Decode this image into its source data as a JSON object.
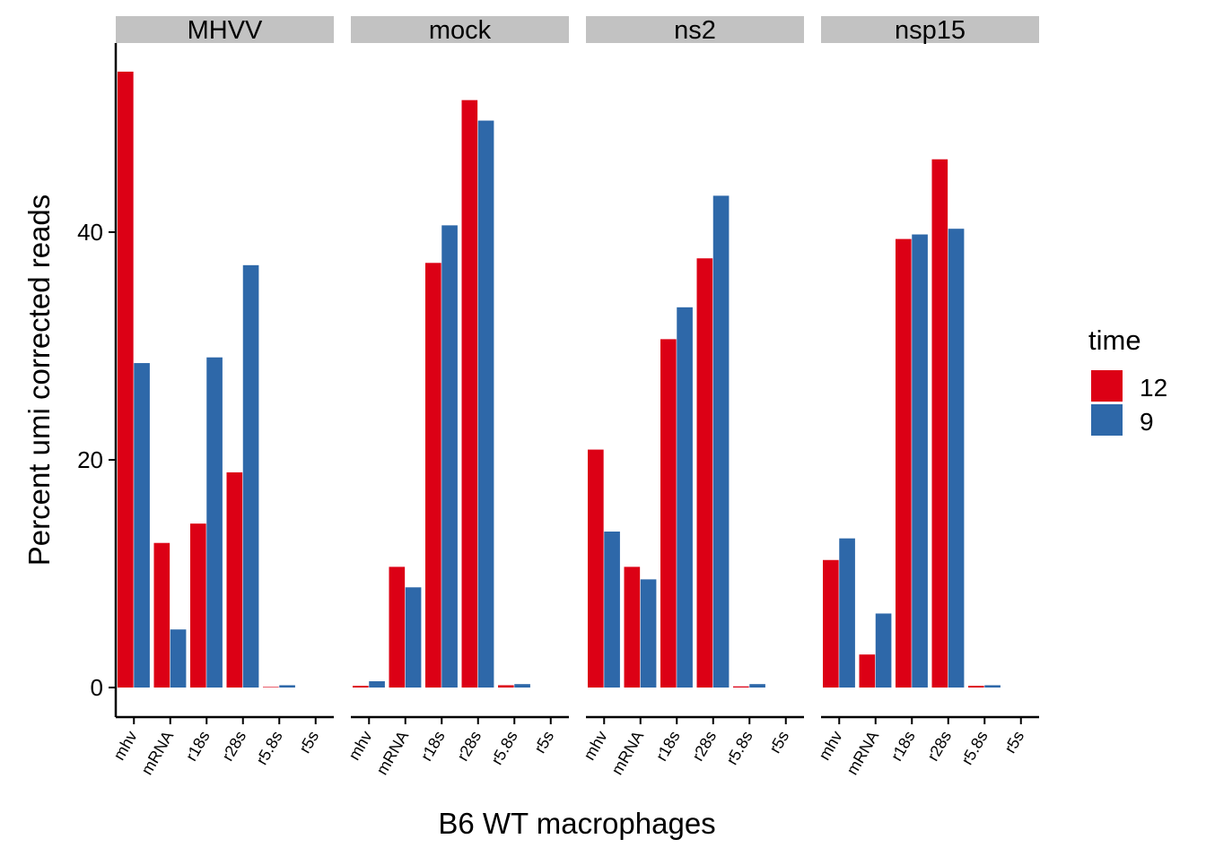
{
  "chart_data": {
    "type": "bar",
    "facets": [
      "MHVV",
      "mock",
      "ns2",
      "nsp15"
    ],
    "categories": [
      "mhv",
      "mRNA",
      "r18s",
      "r28s",
      "r5.8s",
      "r5s"
    ],
    "series": [
      {
        "name": "12",
        "color": "#dc0015",
        "values": {
          "MHVV": [
            54.1,
            12.7,
            14.4,
            18.9,
            0.05,
            0.0
          ],
          "mock": [
            0.15,
            10.6,
            37.3,
            51.6,
            0.2,
            0.0
          ],
          "ns2": [
            20.9,
            10.6,
            30.6,
            37.7,
            0.1,
            0.0
          ],
          "nsp15": [
            11.2,
            2.9,
            39.4,
            46.4,
            0.15,
            0.0
          ]
        }
      },
      {
        "name": "9",
        "color": "#2e68a9",
        "values": {
          "MHVV": [
            28.5,
            5.1,
            29.0,
            37.1,
            0.2,
            0.0
          ],
          "mock": [
            0.55,
            8.8,
            40.6,
            49.8,
            0.3,
            0.0
          ],
          "ns2": [
            13.7,
            9.5,
            33.4,
            43.2,
            0.3,
            0.0
          ],
          "nsp15": [
            13.1,
            6.5,
            39.8,
            40.3,
            0.2,
            0.0
          ]
        }
      }
    ],
    "xlabel": "B6 WT macrophages",
    "ylabel": "Percent umi corrected reads",
    "yticks": [
      0,
      20,
      40
    ],
    "ylim": [
      -2.7,
      56.8
    ],
    "legend": {
      "title": "time",
      "position": "right",
      "entries": [
        "12",
        "9"
      ]
    },
    "grid": false,
    "strip_color": "#c2c2c2"
  }
}
